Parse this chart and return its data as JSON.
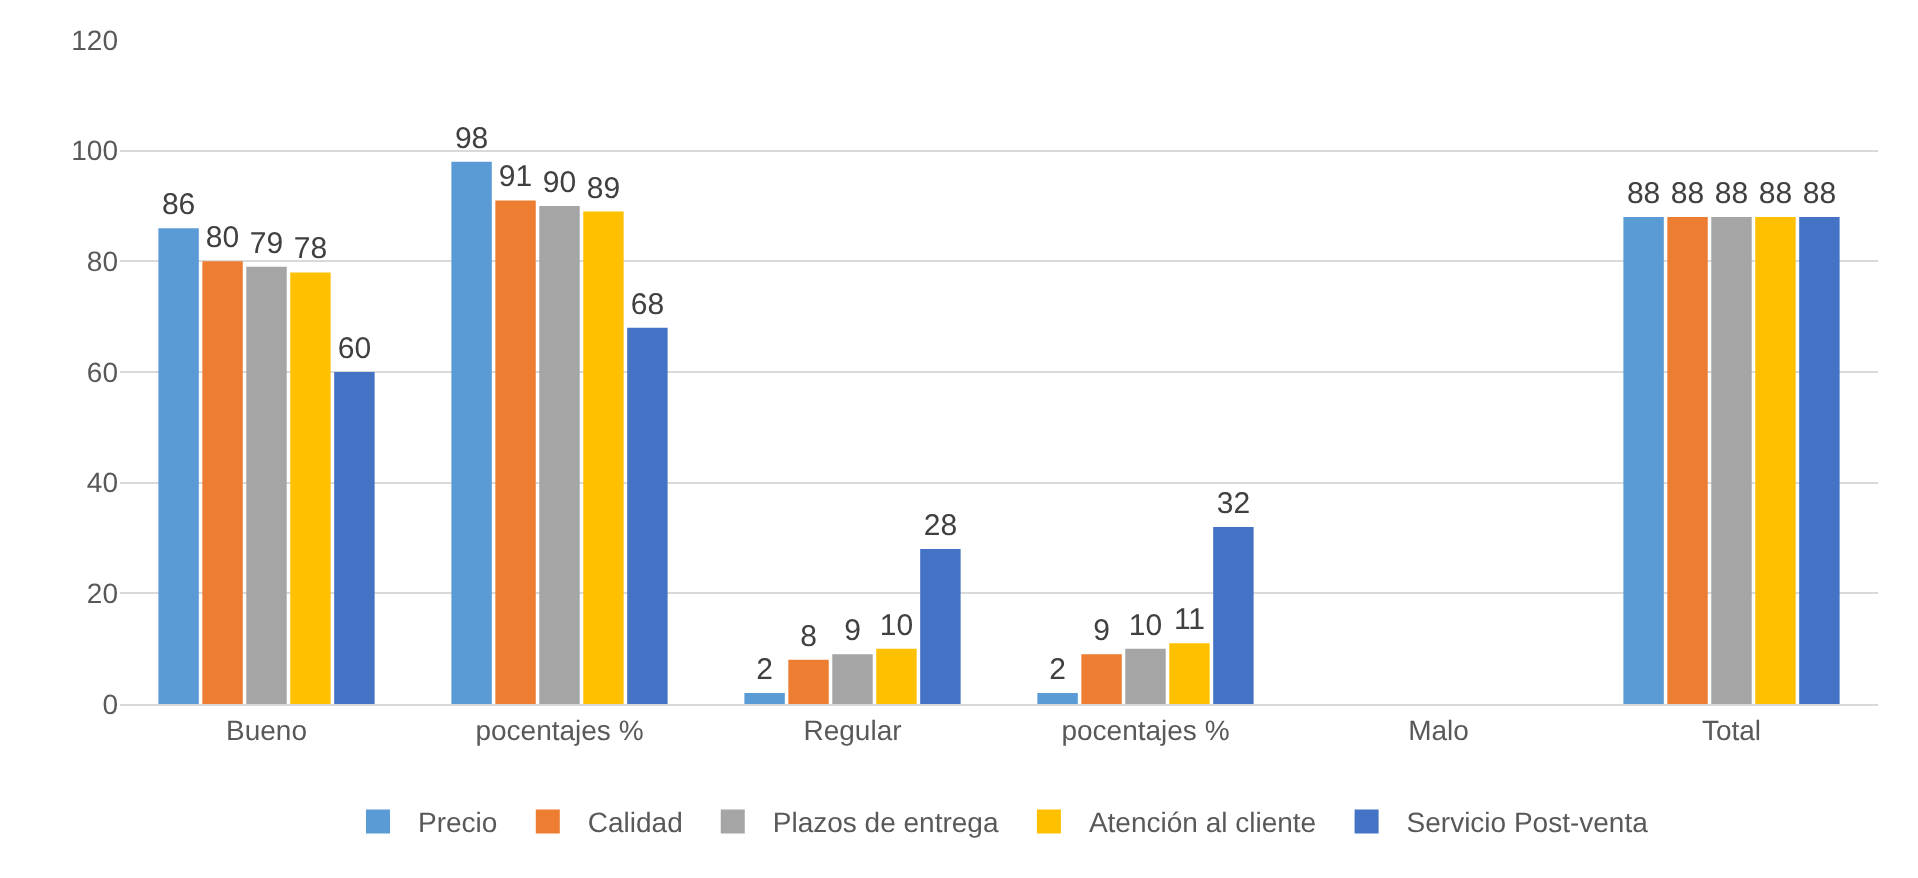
{
  "chart_data": {
    "type": "bar",
    "categories": [
      "Bueno",
      "pocentajes %",
      "Regular",
      "pocentajes %",
      "Malo",
      "Total"
    ],
    "series": [
      {
        "name": "Precio",
        "color": "#5b9bd5",
        "values": [
          86,
          98,
          2,
          2,
          null,
          88
        ]
      },
      {
        "name": "Calidad",
        "color": "#ed7d31",
        "values": [
          80,
          91,
          8,
          9,
          null,
          88
        ]
      },
      {
        "name": "Plazos de entrega",
        "color": "#a5a5a5",
        "values": [
          79,
          90,
          9,
          10,
          null,
          88
        ]
      },
      {
        "name": "Atención al cliente",
        "color": "#ffc000",
        "values": [
          78,
          89,
          10,
          11,
          null,
          88
        ]
      },
      {
        "name": "Servicio Post-venta",
        "color": "#4472c4",
        "values": [
          60,
          68,
          28,
          32,
          null,
          88
        ]
      }
    ],
    "ylim": [
      0,
      120
    ],
    "yticks": [
      0,
      20,
      40,
      60,
      80,
      100,
      120
    ],
    "grid": "y",
    "legend": "bottom",
    "data_labels": true
  }
}
